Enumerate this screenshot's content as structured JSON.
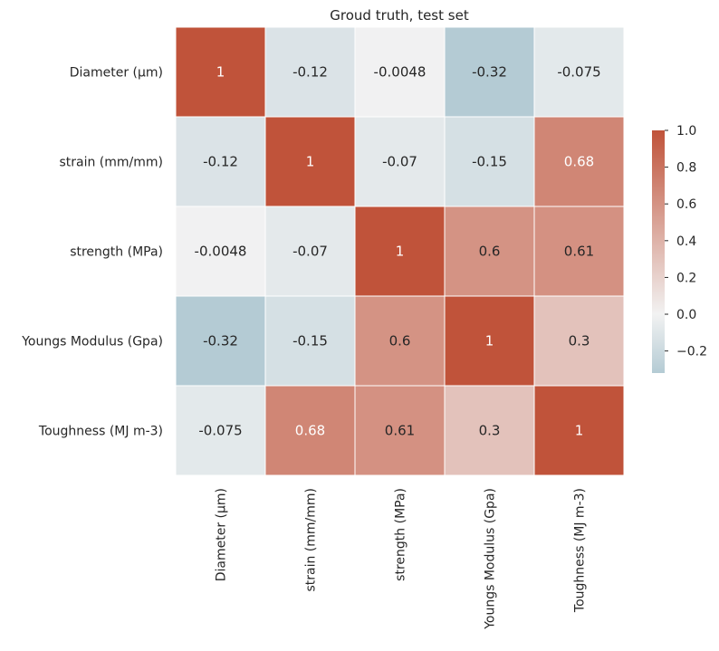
{
  "chart_data": {
    "type": "heatmap",
    "title": "Groud truth, test set",
    "rows": [
      "Diameter (µm)",
      "strain (mm/mm)",
      "strength (MPa)",
      "Youngs Modulus (Gpa)",
      "Toughness (MJ m-3)"
    ],
    "columns": [
      "Diameter (µm)",
      "strain (mm/mm)",
      "strength (MPa)",
      "Youngs Modulus (Gpa)",
      "Toughness (MJ m-3)"
    ],
    "values": [
      [
        1,
        -0.12,
        -0.0048,
        -0.32,
        -0.075
      ],
      [
        -0.12,
        1,
        -0.07,
        -0.15,
        0.68
      ],
      [
        -0.0048,
        -0.07,
        1,
        0.6,
        0.61
      ],
      [
        -0.32,
        -0.15,
        0.6,
        1,
        0.3
      ],
      [
        -0.075,
        0.68,
        0.61,
        0.3,
        1
      ]
    ],
    "value_labels": [
      [
        "1",
        "-0.12",
        "-0.0048",
        "-0.32",
        "-0.075"
      ],
      [
        "-0.12",
        "1",
        "-0.07",
        "-0.15",
        "0.68"
      ],
      [
        "-0.0048",
        "-0.07",
        "1",
        "0.6",
        "0.61"
      ],
      [
        "-0.32",
        "-0.15",
        "0.6",
        "1",
        "0.3"
      ],
      [
        "-0.075",
        "0.68",
        "0.61",
        "0.3",
        "1"
      ]
    ],
    "colorbar": {
      "range": [
        -0.32,
        1.0
      ],
      "ticks": [
        1.0,
        0.8,
        0.6,
        0.4,
        0.2,
        0.0,
        -0.2
      ],
      "tick_labels": [
        "1.0",
        "0.8",
        "0.6",
        "0.4",
        "0.2",
        "0.0",
        "−0.2"
      ],
      "low_color": "#b4cbd4",
      "mid_color": "#f2f2f2",
      "high_color": "#c0533a"
    },
    "grid_line_color": "#ffffff",
    "legend_position": "right"
  }
}
